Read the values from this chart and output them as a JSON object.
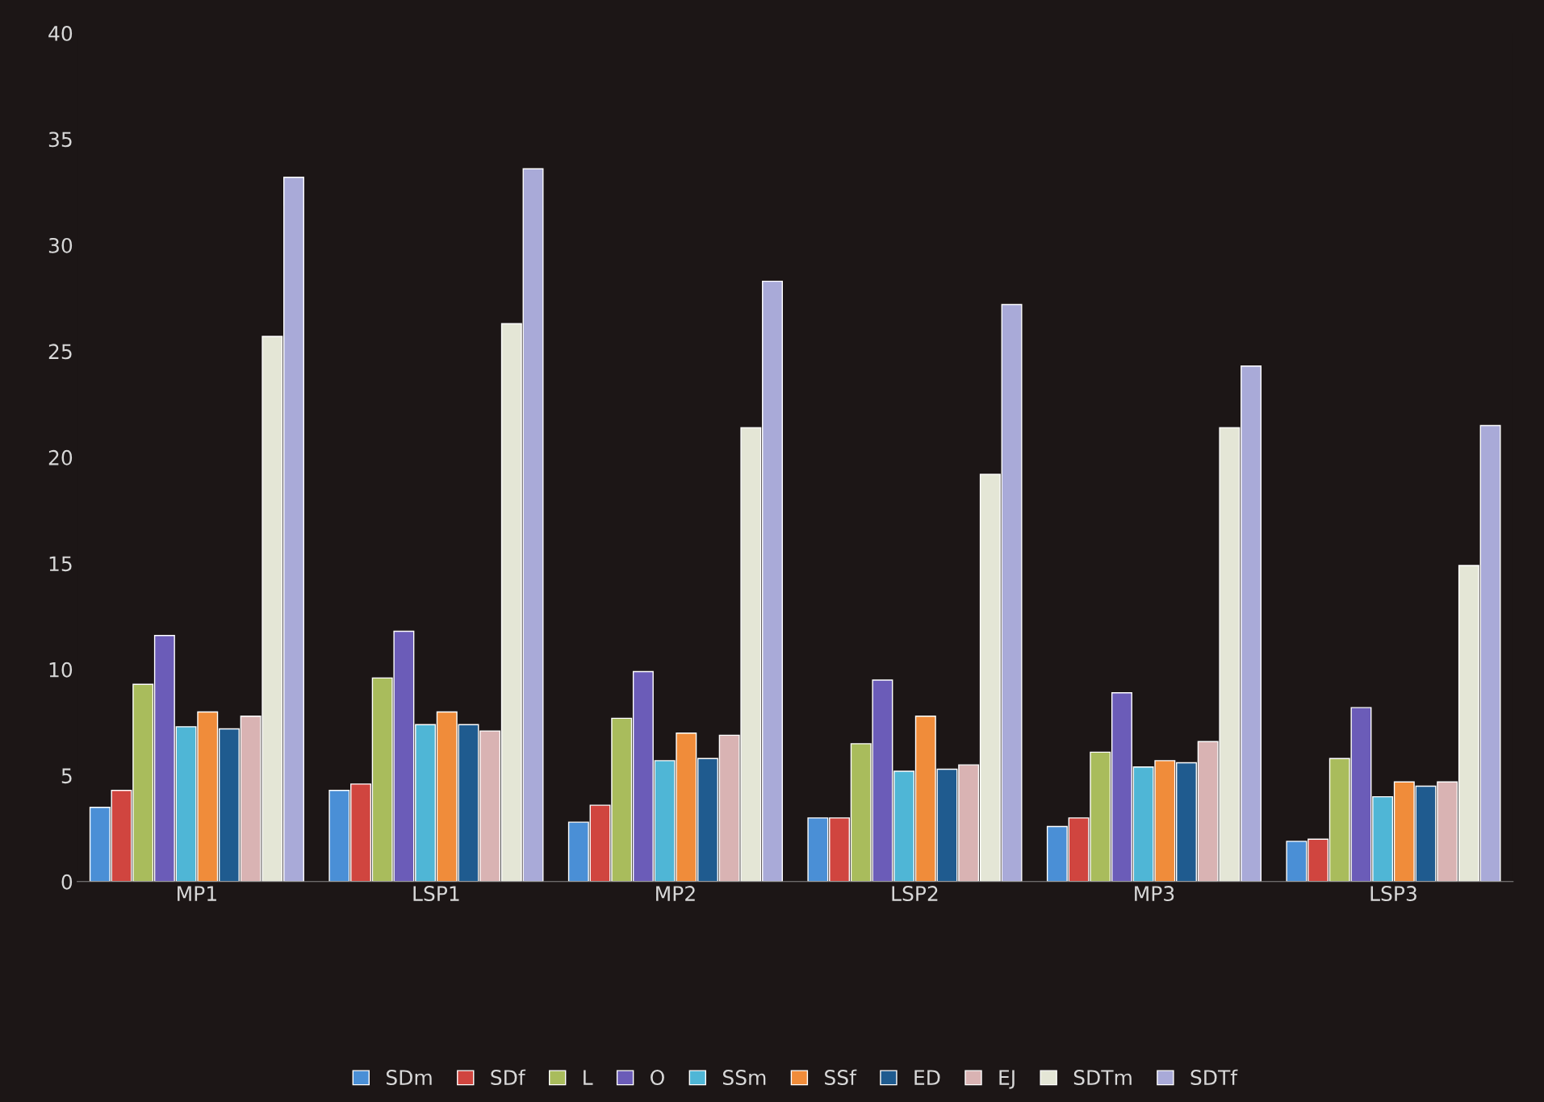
{
  "chart_data": {
    "type": "bar",
    "categories": [
      "MP1",
      "LSP1",
      "MP2",
      "LSP2",
      "MP3",
      "LSP3"
    ],
    "series": [
      {
        "name": "SDm",
        "color": "#4a8fd6",
        "values": [
          3.5,
          4.3,
          2.8,
          3.0,
          2.6,
          1.9
        ]
      },
      {
        "name": "SDf",
        "color": "#d0453f",
        "values": [
          4.3,
          4.6,
          3.6,
          3.0,
          3.0,
          2.0
        ]
      },
      {
        "name": "L",
        "color": "#a9bc5c",
        "values": [
          9.3,
          9.6,
          7.7,
          6.5,
          6.1,
          5.8
        ]
      },
      {
        "name": "O",
        "color": "#6b5cb8",
        "values": [
          11.6,
          11.8,
          9.9,
          9.5,
          8.9,
          8.2
        ]
      },
      {
        "name": "SSm",
        "color": "#4fb6d6",
        "values": [
          7.3,
          7.4,
          5.7,
          5.2,
          5.4,
          4.0
        ]
      },
      {
        "name": "SSf",
        "color": "#f08c3a",
        "values": [
          8.0,
          8.0,
          7.0,
          7.8,
          5.7,
          4.7
        ]
      },
      {
        "name": "ED",
        "color": "#1f5b8f",
        "values": [
          7.2,
          7.4,
          5.8,
          5.3,
          5.6,
          4.5
        ]
      },
      {
        "name": "EJ",
        "color": "#d9b3b3",
        "values": [
          7.8,
          7.1,
          6.9,
          5.5,
          6.6,
          4.7
        ]
      },
      {
        "name": "SDTm",
        "color": "#e4e6d6",
        "values": [
          25.7,
          26.3,
          21.4,
          19.2,
          21.4,
          14.9
        ]
      },
      {
        "name": "SDTf",
        "color": "#a9aad8",
        "values": [
          33.2,
          33.6,
          28.3,
          27.2,
          24.3,
          21.5
        ]
      }
    ],
    "ylim": [
      0,
      40
    ],
    "yticks": [
      0,
      5,
      10,
      15,
      20,
      25,
      30,
      35,
      40
    ],
    "grid": false,
    "legend": "bottom"
  }
}
